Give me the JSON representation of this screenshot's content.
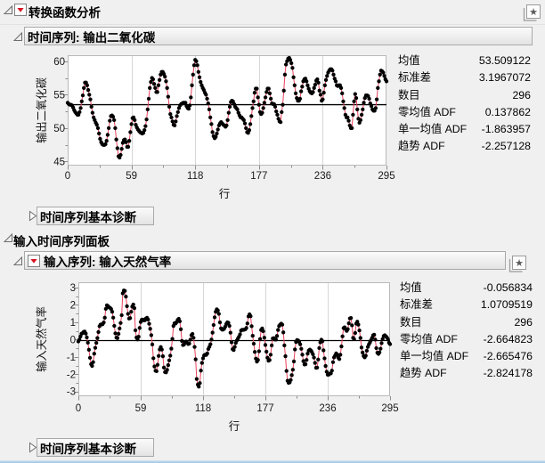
{
  "header": {
    "title": "转换函数分析"
  },
  "icons": {
    "star_glyph": "★"
  },
  "output_section": {
    "title": "时间序列: 输出二氧化碳",
    "stats": [
      {
        "label": "均值",
        "value": "53.509122"
      },
      {
        "label": "标准差",
        "value": "3.1967072"
      },
      {
        "label": "数目",
        "value": "296"
      },
      {
        "label": "零均值 ADF",
        "value": "0.137862"
      },
      {
        "label": "单一均值 ADF",
        "value": "-1.863957"
      },
      {
        "label": "趋势 ADF",
        "value": "-2.257128"
      }
    ],
    "diagnostics_label": "时间序列基本诊断"
  },
  "input_panel": {
    "title": "输入时间序列面板",
    "series_title": "输入序列: 输入天然气率",
    "stats": [
      {
        "label": "均值",
        "value": "-0.056834"
      },
      {
        "label": "标准差",
        "value": "1.0709519"
      },
      {
        "label": "数目",
        "value": "296"
      },
      {
        "label": "零均值 ADF",
        "value": "-2.664823"
      },
      {
        "label": "单一均值 ADF",
        "value": "-2.665476"
      },
      {
        "label": "趋势 ADF",
        "value": "-2.824178"
      }
    ],
    "diagnostics_label": "时间序列基本诊断"
  },
  "chart_data": [
    {
      "type": "line",
      "title": "时间序列: 输出二氧化碳",
      "xlabel": "行",
      "ylabel": "输出二氧化碳",
      "x_ticks": [
        0,
        59,
        118,
        177,
        236,
        295
      ],
      "y_ticks": [
        45,
        50,
        55,
        60
      ],
      "xlim": [
        0,
        295
      ],
      "ylim": [
        44.4,
        60.9
      ],
      "grid": "vertical",
      "legend": "none",
      "reference_line": 53.509122,
      "line_color": "#e8415c",
      "marker_color": "#000000",
      "refline_color": "#000000",
      "values": [
        53.8,
        53.6,
        53.5,
        53.5,
        53.4,
        53.1,
        52.7,
        52.4,
        52.2,
        52.0,
        52.0,
        52.4,
        53.0,
        54.0,
        54.9,
        56.0,
        56.8,
        56.8,
        56.4,
        55.7,
        55.0,
        54.3,
        53.2,
        52.3,
        51.6,
        51.2,
        50.8,
        50.5,
        50.0,
        49.2,
        48.4,
        47.9,
        47.6,
        47.5,
        47.5,
        47.6,
        48.1,
        49.0,
        50.0,
        51.1,
        51.8,
        51.9,
        51.7,
        51.2,
        50.0,
        48.3,
        47.0,
        45.8,
        45.6,
        46.0,
        46.9,
        47.8,
        48.2,
        48.3,
        47.9,
        47.2,
        47.2,
        48.1,
        49.4,
        50.6,
        51.5,
        51.6,
        51.2,
        50.5,
        50.1,
        49.8,
        49.6,
        49.4,
        49.3,
        49.2,
        49.3,
        49.7,
        50.3,
        51.3,
        52.8,
        54.4,
        56.0,
        56.9,
        57.5,
        57.3,
        56.6,
        56.0,
        55.4,
        55.4,
        56.4,
        57.2,
        58.0,
        58.4,
        58.4,
        58.1,
        57.7,
        57.0,
        56.0,
        54.7,
        53.2,
        52.1,
        51.6,
        51.0,
        50.5,
        50.4,
        51.0,
        51.8,
        52.4,
        53.0,
        53.4,
        53.6,
        53.7,
        53.8,
        53.8,
        53.8,
        53.3,
        53.0,
        52.9,
        53.4,
        54.6,
        56.4,
        58.0,
        59.4,
        60.2,
        60.0,
        59.4,
        58.4,
        57.6,
        56.9,
        56.4,
        56.0,
        55.7,
        55.3,
        55.0,
        54.4,
        53.7,
        52.8,
        51.6,
        50.6,
        49.4,
        48.8,
        48.5,
        48.7,
        49.2,
        49.8,
        50.4,
        50.7,
        50.9,
        50.7,
        50.5,
        50.4,
        50.2,
        50.4,
        51.2,
        52.3,
        53.2,
        53.9,
        54.1,
        54.0,
        53.6,
        53.2,
        53.0,
        52.8,
        52.3,
        51.9,
        51.6,
        51.6,
        51.4,
        51.2,
        50.7,
        50.0,
        49.4,
        49.3,
        49.7,
        50.6,
        51.8,
        53.0,
        54.0,
        55.3,
        55.9,
        55.9,
        54.6,
        53.5,
        52.4,
        52.1,
        52.3,
        53.0,
        53.8,
        54.6,
        55.4,
        55.9,
        55.9,
        55.2,
        54.4,
        53.7,
        53.6,
        53.6,
        53.2,
        52.5,
        52.0,
        51.4,
        51.0,
        50.9,
        52.4,
        53.5,
        55.6,
        58.0,
        59.5,
        60.0,
        60.4,
        60.5,
        60.2,
        59.7,
        59.0,
        57.6,
        56.4,
        55.2,
        54.5,
        54.1,
        54.1,
        54.4,
        55.5,
        56.2,
        57.0,
        57.3,
        57.4,
        57.0,
        56.4,
        55.9,
        55.5,
        55.3,
        55.2,
        55.4,
        56.0,
        56.5,
        57.1,
        57.3,
        56.8,
        55.6,
        55.0,
        54.1,
        54.3,
        55.3,
        56.4,
        57.2,
        57.8,
        58.3,
        58.6,
        58.8,
        58.8,
        58.6,
        58.0,
        57.4,
        57.0,
        56.4,
        56.3,
        56.4,
        56.4,
        56.0,
        55.2,
        54.0,
        53.0,
        52.0,
        51.6,
        51.6,
        51.1,
        50.4,
        50.0,
        50.0,
        52.0,
        54.0,
        55.1,
        54.5,
        52.8,
        51.4,
        50.8,
        51.2,
        52.0,
        52.8,
        53.8,
        54.5,
        54.9,
        54.9,
        54.8,
        54.4,
        53.7,
        53.3,
        52.8,
        52.6,
        52.6,
        53.0,
        54.3,
        56.0,
        57.0,
        58.0,
        58.6,
        58.5,
        58.3,
        57.8,
        57.3,
        57.0
      ]
    },
    {
      "type": "line",
      "title": "输入序列: 输入天然气率",
      "xlabel": "行",
      "ylabel": "输入天然气率",
      "x_ticks": [
        0,
        59,
        118,
        177,
        236,
        295
      ],
      "y_ticks": [
        -3,
        -2,
        -1,
        0,
        1,
        2,
        3
      ],
      "xlim": [
        0,
        295
      ],
      "ylim": [
        -3.27,
        3.31
      ],
      "grid": "vertical",
      "legend": "none",
      "reference_line": -0.056834,
      "line_color": "#e8415c",
      "marker_color": "#000000",
      "refline_color": "#000000",
      "values": [
        -0.109,
        0.0,
        0.178,
        0.339,
        0.373,
        0.441,
        0.461,
        0.348,
        0.127,
        -0.18,
        -0.588,
        -1.055,
        -1.421,
        -1.52,
        -1.302,
        -0.814,
        -0.475,
        -0.193,
        0.088,
        0.435,
        0.771,
        0.866,
        0.875,
        0.891,
        0.987,
        1.263,
        1.775,
        1.976,
        1.934,
        1.866,
        1.832,
        1.767,
        1.608,
        1.265,
        0.79,
        0.36,
        0.115,
        0.088,
        0.331,
        0.645,
        0.96,
        1.409,
        2.67,
        2.834,
        2.812,
        2.483,
        1.929,
        1.485,
        1.214,
        1.239,
        1.608,
        1.905,
        2.023,
        1.815,
        0.535,
        0.122,
        0.009,
        0.164,
        0.671,
        1.019,
        1.146,
        1.155,
        1.112,
        1.121,
        1.223,
        1.257,
        1.157,
        0.913,
        0.62,
        0.255,
        -0.28,
        -1.08,
        -1.551,
        -1.799,
        -1.825,
        -1.456,
        -0.944,
        -0.57,
        -0.431,
        -0.577,
        -0.96,
        -1.616,
        -1.875,
        -1.891,
        -1.746,
        -1.474,
        -1.201,
        -0.927,
        -0.524,
        0.04,
        0.788,
        0.943,
        0.93,
        1.006,
        1.137,
        1.198,
        1.054,
        0.595,
        -0.08,
        -0.314,
        -0.288,
        -0.153,
        -0.109,
        -0.187,
        -0.255,
        -0.229,
        -0.007,
        0.254,
        0.33,
        0.102,
        -0.423,
        -1.139,
        -2.275,
        -2.594,
        -2.716,
        -2.51,
        -1.79,
        -1.346,
        -1.081,
        -0.91,
        -0.876,
        -0.885,
        -0.8,
        -0.544,
        -0.416,
        -0.271,
        0.0,
        0.403,
        0.841,
        1.285,
        1.607,
        1.746,
        1.683,
        1.485,
        0.993,
        0.648,
        0.577,
        0.577,
        0.632,
        0.747,
        0.9,
        0.993,
        0.968,
        0.79,
        0.399,
        -0.161,
        -0.553,
        -0.603,
        -0.424,
        -0.194,
        -0.049,
        0.06,
        0.161,
        0.301,
        0.517,
        0.566,
        0.56,
        0.573,
        0.592,
        0.671,
        0.933,
        1.337,
        1.46,
        1.353,
        0.772,
        0.218,
        -0.237,
        -0.714,
        -1.099,
        -1.269,
        -1.175,
        -0.676,
        0.033,
        0.556,
        0.643,
        0.484,
        0.109,
        -0.31,
        -0.697,
        -1.047,
        -1.218,
        -1.183,
        -0.873,
        -0.336,
        0.063,
        0.084,
        0.0,
        0.001,
        0.209,
        0.556,
        0.782,
        0.858,
        0.918,
        0.862,
        0.416,
        -0.336,
        -0.959,
        -1.813,
        -2.378,
        -2.499,
        -2.473,
        -2.33,
        -2.053,
        -1.739,
        -1.261,
        -0.569,
        -0.137,
        -0.024,
        -0.05,
        -0.135,
        -0.276,
        -0.534,
        -0.871,
        -1.243,
        -1.439,
        -1.422,
        -1.175,
        -0.813,
        -0.634,
        -0.582,
        -0.625,
        -0.713,
        -0.848,
        -1.039,
        -1.346,
        -1.628,
        -1.619,
        -1.149,
        -0.488,
        -0.16,
        -0.007,
        -0.092,
        -0.62,
        -1.086,
        -1.525,
        -1.858,
        -2.029,
        -2.024,
        -1.961,
        -1.952,
        -1.794,
        -1.302,
        -1.03,
        -0.918,
        -0.798,
        -0.867,
        -1.047,
        -1.123,
        -0.876,
        -0.395,
        0.185,
        0.662,
        0.709,
        0.605,
        0.501,
        0.603,
        0.943,
        1.223,
        1.249,
        0.824,
        0.102,
        0.025,
        0.382,
        0.922,
        1.032,
        0.866,
        0.527,
        0.093,
        -0.458,
        -0.748,
        -0.947,
        -1.029,
        -0.928,
        -0.645,
        -0.424,
        -0.276,
        -0.158,
        -0.033,
        0.102,
        0.251,
        0.28,
        0.0,
        -0.493,
        -0.759,
        -0.824,
        -0.74,
        -0.528,
        -0.204,
        0.034,
        0.204,
        0.253,
        0.195,
        0.131,
        0.017,
        -0.182,
        -0.262
      ]
    }
  ]
}
